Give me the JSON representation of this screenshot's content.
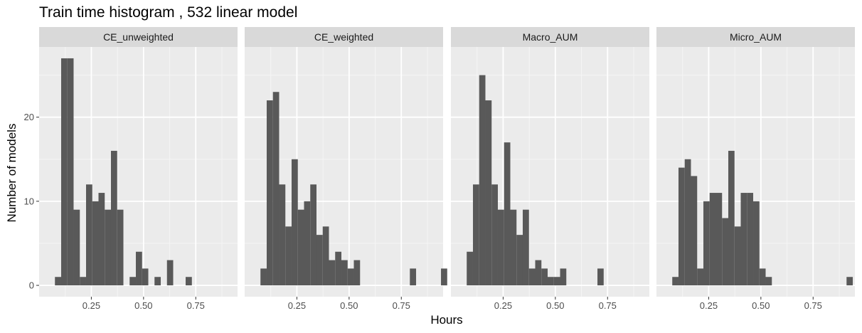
{
  "chart_data": {
    "type": "bar",
    "subtype": "faceted-histogram",
    "title": "Train time histogram , 532 linear model",
    "xlabel": "Hours",
    "ylabel": "Number of models",
    "xlim": [
      0.0,
      0.95
    ],
    "ylim": [
      -1.35,
      28.35
    ],
    "x_ticks": [
      0.25,
      0.5,
      0.75
    ],
    "x_tick_labels": [
      "0.25",
      "0.50",
      "0.75"
    ],
    "y_ticks": [
      0,
      10,
      20
    ],
    "y_tick_labels": [
      "0",
      "10",
      "20"
    ],
    "grid": true,
    "bin_start": 0.0757,
    "bin_width": 0.0298,
    "colors": {
      "bar": "#595959",
      "panel_bg": "#ebebeb",
      "strip_bg": "#d9d9d9",
      "grid_major": "#ffffff",
      "grid_minor": "#f5f5f5"
    },
    "facets": [
      {
        "name": "CE_unweighted",
        "counts": [
          1,
          27,
          27,
          9,
          1,
          12,
          10,
          11,
          9,
          16,
          9,
          0,
          1,
          4,
          2,
          0,
          1,
          0,
          3,
          0,
          0,
          1,
          0,
          0,
          0,
          0,
          0,
          0,
          0,
          0
        ]
      },
      {
        "name": "CE_weighted",
        "counts": [
          2,
          22,
          23,
          12,
          7,
          15,
          9,
          10,
          12,
          6,
          7,
          3,
          4,
          3,
          2,
          3,
          0,
          0,
          0,
          0,
          0,
          0,
          0,
          0,
          2,
          0,
          0,
          0,
          0,
          2
        ]
      },
      {
        "name": "Macro_AUM",
        "counts": [
          4,
          12,
          25,
          22,
          12,
          9,
          17,
          9,
          6,
          9,
          2,
          3,
          2,
          1,
          1,
          2,
          0,
          0,
          0,
          0,
          0,
          2,
          0,
          0,
          0,
          0,
          0,
          0,
          0,
          0
        ]
      },
      {
        "name": "Micro_AUM",
        "counts": [
          1,
          14,
          15,
          13,
          2,
          10,
          11,
          11,
          8,
          16,
          7,
          11,
          11,
          10,
          2,
          1,
          0,
          0,
          0,
          0,
          0,
          0,
          0,
          0,
          0,
          0,
          0,
          0,
          1,
          0
        ]
      }
    ]
  }
}
